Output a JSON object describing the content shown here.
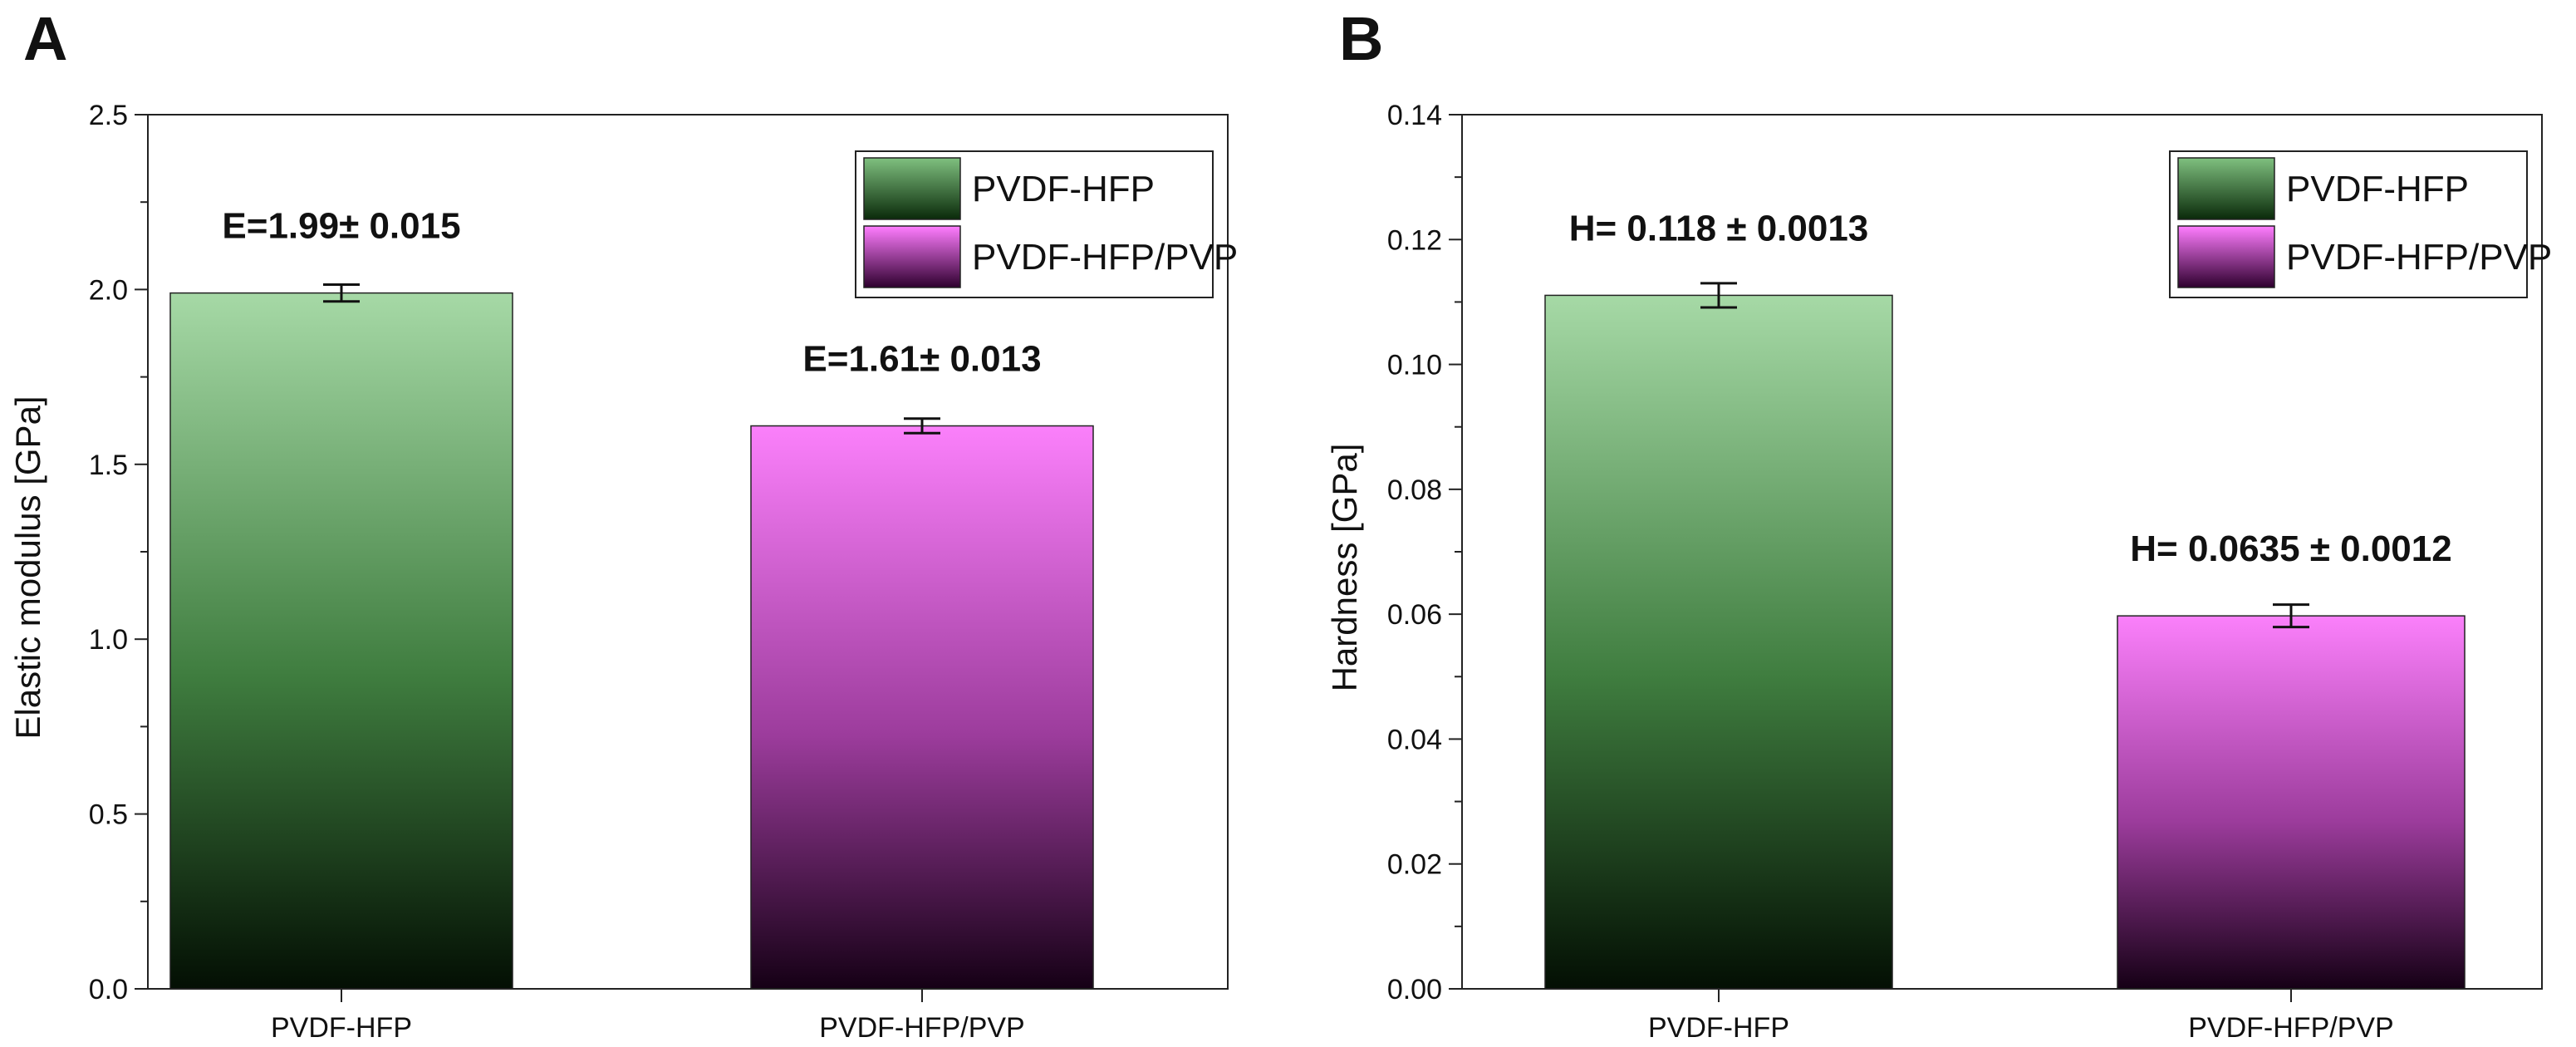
{
  "chart_data": [
    {
      "type": "bar",
      "panel_label": "A",
      "categories": [
        "PVDF-HFP",
        "PVDF-HFP/PVP"
      ],
      "series": [
        {
          "values": [
            1.99,
            1.61
          ],
          "errors": [
            0.015,
            0.013
          ]
        }
      ],
      "annotations": [
        "E=1.99± 0.015",
        "E=1.61± 0.013"
      ],
      "ylabel": "Elastic modulus [GPa]",
      "xlabel": "",
      "ylim": [
        0,
        2.5
      ],
      "yticks": [
        "0.0",
        "0.5",
        "1.0",
        "1.5",
        "2.0",
        "2.5"
      ],
      "legend": {
        "entries": [
          "PVDF-HFP",
          "PVDF-HFP/PVP"
        ],
        "placement": "top-right"
      },
      "grid": false
    },
    {
      "type": "bar",
      "panel_label": "B",
      "categories": [
        "PVDF-HFP",
        "PVDF-HFP/PVP"
      ],
      "series": [
        {
          "values": [
            0.119,
            0.064
          ],
          "errors": [
            0.0013,
            0.0012
          ]
        }
      ],
      "annotations": [
        "H= 0.118 ± 0.0013",
        "H= 0.0635 ± 0.0012"
      ],
      "ylabel": "Hardness [GPa]",
      "xlabel": "",
      "ylim": [
        0,
        0.15
      ],
      "yticks": [
        "0.00",
        "0.02",
        "0.04",
        "0.06",
        "0.08",
        "0.10",
        "0.12",
        "0.14"
      ],
      "legend": {
        "entries": [
          "PVDF-HFP",
          "PVDF-HFP/PVP"
        ],
        "placement": "top-right"
      },
      "grid": false
    }
  ],
  "colors": {
    "green_top": "#a6d9a6",
    "green_mid": "#3f7d3f",
    "green_bottom": "#030f03",
    "magenta_top": "#fb80fb",
    "magenta_mid": "#9c3c9c",
    "magenta_bottom": "#150015",
    "legend_green_top": "#7fc07f",
    "legend_green_bottom": "#0a2a0a",
    "legend_magenta_top": "#ff7dff",
    "legend_magenta_bottom": "#2e002e"
  }
}
